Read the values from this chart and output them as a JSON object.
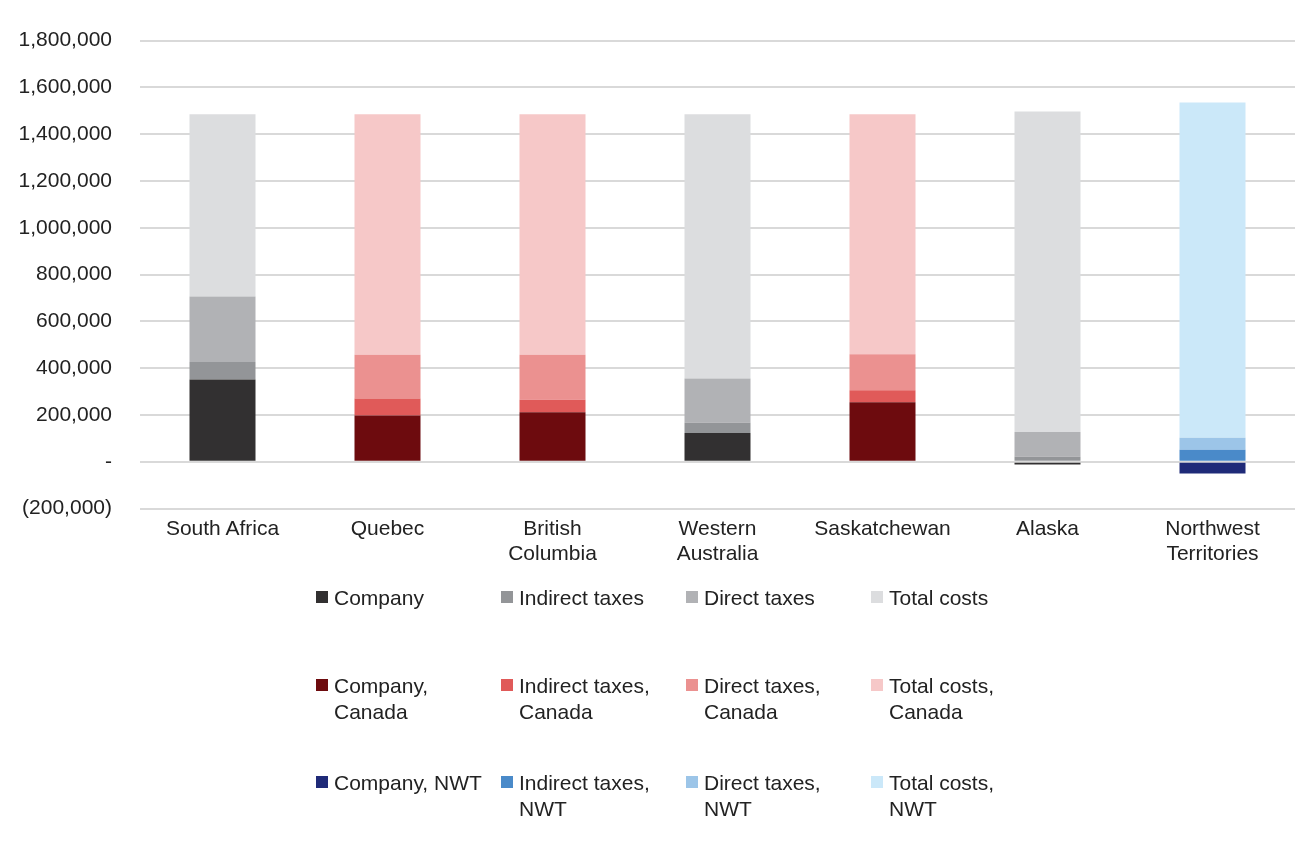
{
  "chart_data": {
    "type": "bar",
    "stacked": true,
    "categories": [
      "South Africa",
      "Quebec",
      "British Columbia",
      "Western Australia",
      "Saskatchewan",
      "Alaska",
      "Northwest Territories"
    ],
    "series": [
      {
        "name": "Company",
        "color": "#323031",
        "values": [
          352000,
          null,
          null,
          123000,
          null,
          -12000,
          null
        ]
      },
      {
        "name": "Indirect taxes",
        "color": "#939598",
        "values": [
          74000,
          null,
          null,
          44000,
          null,
          22000,
          null
        ]
      },
      {
        "name": "Direct taxes",
        "color": "#b1b2b5",
        "values": [
          280000,
          null,
          null,
          189000,
          null,
          105000,
          null
        ]
      },
      {
        "name": "Total costs",
        "color": "#dcdddf",
        "values": [
          779000,
          null,
          null,
          1129000,
          null,
          1370000,
          null
        ]
      },
      {
        "name": "Company, Canada",
        "color": "#6d0b0e",
        "values": [
          null,
          198000,
          212000,
          null,
          254000,
          null,
          null
        ]
      },
      {
        "name": "Indirect taxes, Canada",
        "color": "#e05a59",
        "values": [
          null,
          72000,
          53000,
          null,
          52000,
          null,
          null
        ]
      },
      {
        "name": "Direct taxes, Canada",
        "color": "#eb9190",
        "values": [
          null,
          187000,
          192000,
          null,
          154000,
          null,
          null
        ]
      },
      {
        "name": "Total costs, Canada",
        "color": "#f6c8c8",
        "values": [
          null,
          1028000,
          1028000,
          null,
          1025000,
          null,
          null
        ]
      },
      {
        "name": "Company, NWT",
        "color": "#1f2a78",
        "values": [
          null,
          null,
          null,
          null,
          null,
          null,
          -50000
        ]
      },
      {
        "name": "Indirect taxes, NWT",
        "color": "#4a8ac9",
        "values": [
          null,
          null,
          null,
          null,
          null,
          null,
          51000
        ]
      },
      {
        "name": "Direct taxes, NWT",
        "color": "#9cc5e8",
        "values": [
          null,
          null,
          null,
          null,
          null,
          null,
          52000
        ]
      },
      {
        "name": "Total costs, NWT",
        "color": "#cbe8f9",
        "values": [
          null,
          null,
          null,
          null,
          null,
          null,
          1432000
        ]
      }
    ],
    "ylim": [
      -200000,
      1800000
    ],
    "yticks": [
      {
        "value": -200000,
        "label": "(200,000)"
      },
      {
        "value": 0,
        "label": "-"
      },
      {
        "value": 200000,
        "label": "200,000"
      },
      {
        "value": 400000,
        "label": "400,000"
      },
      {
        "value": 600000,
        "label": "600,000"
      },
      {
        "value": 800000,
        "label": "800,000"
      },
      {
        "value": 1000000,
        "label": "1,000,000"
      },
      {
        "value": 1200000,
        "label": "1,200,000"
      },
      {
        "value": 1400000,
        "label": "1,400,000"
      },
      {
        "value": 1600000,
        "label": "1,600,000"
      },
      {
        "value": 1800000,
        "label": "1,800,000"
      }
    ],
    "grid": "y",
    "legend": "bottom"
  }
}
